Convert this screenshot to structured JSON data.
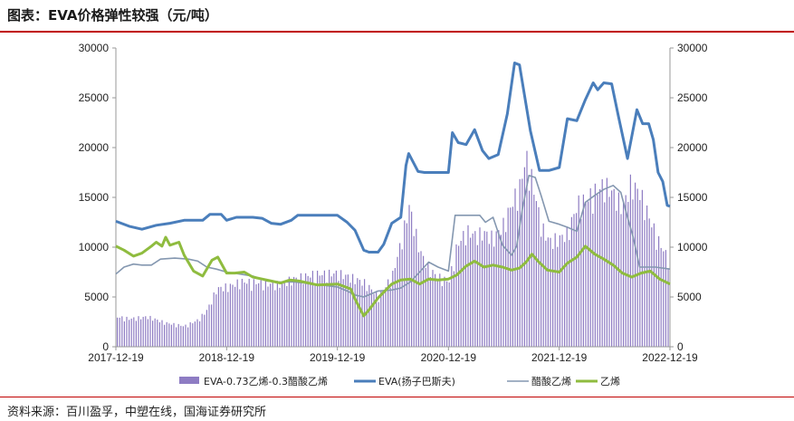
{
  "title": "图表：EVA价格弹性较强（元/吨）",
  "source": "资料来源：百川盈孚，中塑在线，国海证券研究所",
  "chart_data": {
    "type": "line",
    "x_ticks": [
      "2017-12-19",
      "2018-12-19",
      "2019-12-19",
      "2020-12-19",
      "2021-12-19",
      "2022-12-19"
    ],
    "x_range": [
      "2017-12-19",
      "2022-12-19"
    ],
    "y_left": {
      "ticks": [
        "0",
        "5000",
        "10000",
        "15000",
        "20000",
        "25000",
        "30000"
      ],
      "range": [
        0,
        30000
      ]
    },
    "y_right": {
      "ticks": [
        "0",
        "5000",
        "10000",
        "15000",
        "20000",
        "25000",
        "30000"
      ],
      "range": [
        0,
        30000
      ]
    },
    "legend": [
      "EVA-0.73乙烯-0.3醋酸乙烯",
      "EVA(扬子巴斯夫)",
      "醋酸乙烯",
      "乙烯"
    ],
    "series": [
      {
        "name": "EVA-0.73乙烯-0.3醋酸乙烯",
        "kind": "bar",
        "color": "#8e7cc3",
        "points": [
          [
            "2017-12-19",
            2900
          ],
          [
            "2018-02-01",
            2700
          ],
          [
            "2018-04-01",
            2900
          ],
          [
            "2018-06-01",
            2300
          ],
          [
            "2018-08-01",
            2000
          ],
          [
            "2018-09-15",
            2600
          ],
          [
            "2018-10-15",
            3600
          ],
          [
            "2018-11-15",
            5600
          ],
          [
            "2019-01-01",
            5900
          ],
          [
            "2019-02-01",
            6300
          ],
          [
            "2019-04-01",
            6200
          ],
          [
            "2019-06-01",
            6000
          ],
          [
            "2019-08-01",
            6600
          ],
          [
            "2019-10-01",
            7000
          ],
          [
            "2019-12-19",
            7100
          ],
          [
            "2020-02-01",
            6700
          ],
          [
            "2020-03-15",
            6200
          ],
          [
            "2020-05-01",
            4900
          ],
          [
            "2020-06-15",
            6800
          ],
          [
            "2020-07-15",
            10200
          ],
          [
            "2020-08-10",
            13600
          ],
          [
            "2020-09-15",
            9200
          ],
          [
            "2020-10-15",
            7500
          ],
          [
            "2020-11-10",
            6800
          ],
          [
            "2020-12-19",
            6300
          ],
          [
            "2021-01-15",
            9800
          ],
          [
            "2021-02-15",
            11200
          ],
          [
            "2021-03-15",
            10800
          ],
          [
            "2021-04-15",
            11000
          ],
          [
            "2021-05-15",
            10500
          ],
          [
            "2021-06-15",
            11700
          ],
          [
            "2021-07-15",
            13900
          ],
          [
            "2021-08-10",
            15500
          ],
          [
            "2021-08-30",
            18400
          ],
          [
            "2021-09-20",
            16000
          ],
          [
            "2021-10-20",
            11600
          ],
          [
            "2021-11-15",
            10200
          ],
          [
            "2021-12-19",
            10500
          ],
          [
            "2022-01-15",
            11000
          ],
          [
            "2022-02-15",
            13800
          ],
          [
            "2022-03-15",
            14200
          ],
          [
            "2022-04-15",
            15000
          ],
          [
            "2022-05-15",
            15700
          ],
          [
            "2022-06-15",
            14800
          ],
          [
            "2022-07-15",
            13500
          ],
          [
            "2022-08-10",
            15800
          ],
          [
            "2022-09-10",
            14900
          ],
          [
            "2022-10-10",
            12500
          ],
          [
            "2022-11-10",
            10200
          ],
          [
            "2022-12-10",
            8600
          ]
        ]
      },
      {
        "name": "EVA(扬子巴斯夫)",
        "kind": "line",
        "color": "#4a7ebb",
        "points": [
          [
            "2017-12-19",
            12600
          ],
          [
            "2018-02-01",
            12100
          ],
          [
            "2018-03-15",
            11800
          ],
          [
            "2018-05-01",
            12200
          ],
          [
            "2018-06-15",
            12400
          ],
          [
            "2018-08-01",
            12700
          ],
          [
            "2018-10-01",
            12700
          ],
          [
            "2018-10-25",
            13300
          ],
          [
            "2018-12-01",
            13300
          ],
          [
            "2018-12-19",
            12700
          ],
          [
            "2019-01-20",
            13000
          ],
          [
            "2019-03-15",
            13000
          ],
          [
            "2019-04-15",
            12900
          ],
          [
            "2019-05-15",
            12400
          ],
          [
            "2019-06-15",
            12300
          ],
          [
            "2019-07-20",
            12700
          ],
          [
            "2019-08-10",
            13200
          ],
          [
            "2019-09-15",
            13200
          ],
          [
            "2019-12-19",
            13200
          ],
          [
            "2020-01-20",
            12500
          ],
          [
            "2020-02-15",
            11700
          ],
          [
            "2020-03-15",
            9700
          ],
          [
            "2020-04-01",
            9500
          ],
          [
            "2020-05-01",
            9500
          ],
          [
            "2020-05-20",
            10300
          ],
          [
            "2020-06-15",
            12400
          ],
          [
            "2020-07-15",
            13000
          ],
          [
            "2020-08-01",
            18200
          ],
          [
            "2020-08-10",
            19400
          ],
          [
            "2020-09-10",
            17600
          ],
          [
            "2020-10-01",
            17500
          ],
          [
            "2020-11-10",
            17500
          ],
          [
            "2020-12-19",
            17500
          ],
          [
            "2021-01-01",
            21500
          ],
          [
            "2021-01-20",
            20500
          ],
          [
            "2021-02-15",
            20300
          ],
          [
            "2021-03-15",
            21800
          ],
          [
            "2021-04-10",
            19700
          ],
          [
            "2021-05-01",
            18900
          ],
          [
            "2021-06-01",
            19300
          ],
          [
            "2021-07-01",
            23400
          ],
          [
            "2021-07-25",
            28500
          ],
          [
            "2021-08-10",
            28300
          ],
          [
            "2021-09-15",
            21700
          ],
          [
            "2021-10-15",
            17700
          ],
          [
            "2021-11-15",
            17700
          ],
          [
            "2021-12-19",
            18000
          ],
          [
            "2022-01-15",
            22900
          ],
          [
            "2022-02-15",
            22700
          ],
          [
            "2022-03-15",
            24800
          ],
          [
            "2022-04-10",
            26500
          ],
          [
            "2022-04-25",
            25800
          ],
          [
            "2022-05-15",
            26500
          ],
          [
            "2022-06-10",
            26400
          ],
          [
            "2022-07-01",
            23300
          ],
          [
            "2022-08-01",
            18900
          ],
          [
            "2022-09-01",
            23800
          ],
          [
            "2022-09-20",
            22400
          ],
          [
            "2022-10-10",
            22400
          ],
          [
            "2022-10-25",
            20800
          ],
          [
            "2022-11-10",
            17500
          ],
          [
            "2022-11-25",
            16600
          ],
          [
            "2022-12-10",
            14200
          ],
          [
            "2022-12-19",
            14100
          ]
        ]
      },
      {
        "name": "醋酸乙烯",
        "kind": "line",
        "color": "#8497b0",
        "points": [
          [
            "2017-12-19",
            7300
          ],
          [
            "2018-01-15",
            8000
          ],
          [
            "2018-02-15",
            8300
          ],
          [
            "2018-03-15",
            8200
          ],
          [
            "2018-04-15",
            8200
          ],
          [
            "2018-05-15",
            8800
          ],
          [
            "2018-07-01",
            8900
          ],
          [
            "2018-08-15",
            8800
          ],
          [
            "2018-09-15",
            8600
          ],
          [
            "2018-10-15",
            8000
          ],
          [
            "2018-11-15",
            7800
          ],
          [
            "2018-12-19",
            7500
          ],
          [
            "2019-02-01",
            7300
          ],
          [
            "2019-03-15",
            7100
          ],
          [
            "2019-05-01",
            6600
          ],
          [
            "2019-06-15",
            6500
          ],
          [
            "2019-08-01",
            6500
          ],
          [
            "2019-10-01",
            6300
          ],
          [
            "2019-12-19",
            6000
          ],
          [
            "2020-01-20",
            5600
          ],
          [
            "2020-02-15",
            5200
          ],
          [
            "2020-03-15",
            5000
          ],
          [
            "2020-05-01",
            5600
          ],
          [
            "2020-06-15",
            5700
          ],
          [
            "2020-07-15",
            5900
          ],
          [
            "2020-08-15",
            6500
          ],
          [
            "2020-09-15",
            7500
          ],
          [
            "2020-10-15",
            8500
          ],
          [
            "2020-11-15",
            8000
          ],
          [
            "2020-12-19",
            7600
          ],
          [
            "2021-01-10",
            13200
          ],
          [
            "2021-02-15",
            13200
          ],
          [
            "2021-04-01",
            13200
          ],
          [
            "2021-04-20",
            12500
          ],
          [
            "2021-05-15",
            13000
          ],
          [
            "2021-06-15",
            10200
          ],
          [
            "2021-07-15",
            9200
          ],
          [
            "2021-08-01",
            10100
          ],
          [
            "2021-08-20",
            13900
          ],
          [
            "2021-09-10",
            17200
          ],
          [
            "2021-10-01",
            17000
          ],
          [
            "2021-10-20",
            15200
          ],
          [
            "2021-11-15",
            12600
          ],
          [
            "2021-12-19",
            12300
          ],
          [
            "2022-01-15",
            12000
          ],
          [
            "2022-02-15",
            11600
          ],
          [
            "2022-03-15",
            14500
          ],
          [
            "2022-04-15",
            15200
          ],
          [
            "2022-05-15",
            15800
          ],
          [
            "2022-06-15",
            16200
          ],
          [
            "2022-07-10",
            15500
          ],
          [
            "2022-08-01",
            13000
          ],
          [
            "2022-08-20",
            11000
          ],
          [
            "2022-09-10",
            8000
          ],
          [
            "2022-10-01",
            8000
          ],
          [
            "2022-11-01",
            8000
          ],
          [
            "2022-12-19",
            7800
          ]
        ]
      },
      {
        "name": "乙烯",
        "kind": "line",
        "color": "#8fbc3f",
        "points": [
          [
            "2017-12-19",
            10100
          ],
          [
            "2018-01-15",
            9700
          ],
          [
            "2018-02-15",
            9100
          ],
          [
            "2018-03-15",
            9400
          ],
          [
            "2018-04-15",
            10100
          ],
          [
            "2018-05-01",
            10500
          ],
          [
            "2018-05-20",
            10100
          ],
          [
            "2018-06-01",
            11000
          ],
          [
            "2018-06-15",
            10200
          ],
          [
            "2018-07-15",
            10500
          ],
          [
            "2018-08-01",
            9200
          ],
          [
            "2018-09-01",
            7600
          ],
          [
            "2018-10-01",
            7100
          ],
          [
            "2018-11-01",
            8700
          ],
          [
            "2018-11-20",
            9000
          ],
          [
            "2018-12-19",
            7400
          ],
          [
            "2019-01-15",
            7400
          ],
          [
            "2019-02-15",
            7500
          ],
          [
            "2019-03-15",
            7000
          ],
          [
            "2019-04-15",
            6800
          ],
          [
            "2019-05-15",
            6600
          ],
          [
            "2019-06-15",
            6400
          ],
          [
            "2019-07-15",
            6700
          ],
          [
            "2019-08-15",
            6600
          ],
          [
            "2019-09-15",
            6400
          ],
          [
            "2019-10-15",
            6200
          ],
          [
            "2019-12-19",
            6300
          ],
          [
            "2020-01-15",
            6000
          ],
          [
            "2020-02-01",
            5800
          ],
          [
            "2020-02-15",
            4800
          ],
          [
            "2020-03-15",
            3100
          ],
          [
            "2020-04-01",
            3700
          ],
          [
            "2020-05-01",
            4900
          ],
          [
            "2020-06-15",
            6300
          ],
          [
            "2020-07-15",
            6700
          ],
          [
            "2020-08-15",
            6800
          ],
          [
            "2020-09-15",
            6300
          ],
          [
            "2020-10-15",
            6800
          ],
          [
            "2020-11-15",
            6700
          ],
          [
            "2020-12-19",
            6800
          ],
          [
            "2021-01-15",
            7200
          ],
          [
            "2021-02-15",
            8100
          ],
          [
            "2021-03-15",
            8600
          ],
          [
            "2021-04-15",
            8000
          ],
          [
            "2021-05-15",
            8200
          ],
          [
            "2021-06-15",
            8000
          ],
          [
            "2021-07-15",
            7700
          ],
          [
            "2021-08-10",
            7900
          ],
          [
            "2021-09-01",
            8500
          ],
          [
            "2021-09-20",
            9300
          ],
          [
            "2021-10-10",
            8600
          ],
          [
            "2021-11-10",
            7700
          ],
          [
            "2021-12-19",
            7500
          ],
          [
            "2022-01-15",
            8400
          ],
          [
            "2022-02-15",
            9000
          ],
          [
            "2022-03-15",
            10100
          ],
          [
            "2022-04-15",
            9300
          ],
          [
            "2022-05-15",
            8800
          ],
          [
            "2022-06-15",
            8200
          ],
          [
            "2022-07-15",
            7400
          ],
          [
            "2022-08-15",
            7000
          ],
          [
            "2022-09-15",
            7400
          ],
          [
            "2022-10-15",
            7600
          ],
          [
            "2022-11-15",
            6800
          ],
          [
            "2022-12-19",
            6300
          ]
        ]
      }
    ]
  }
}
